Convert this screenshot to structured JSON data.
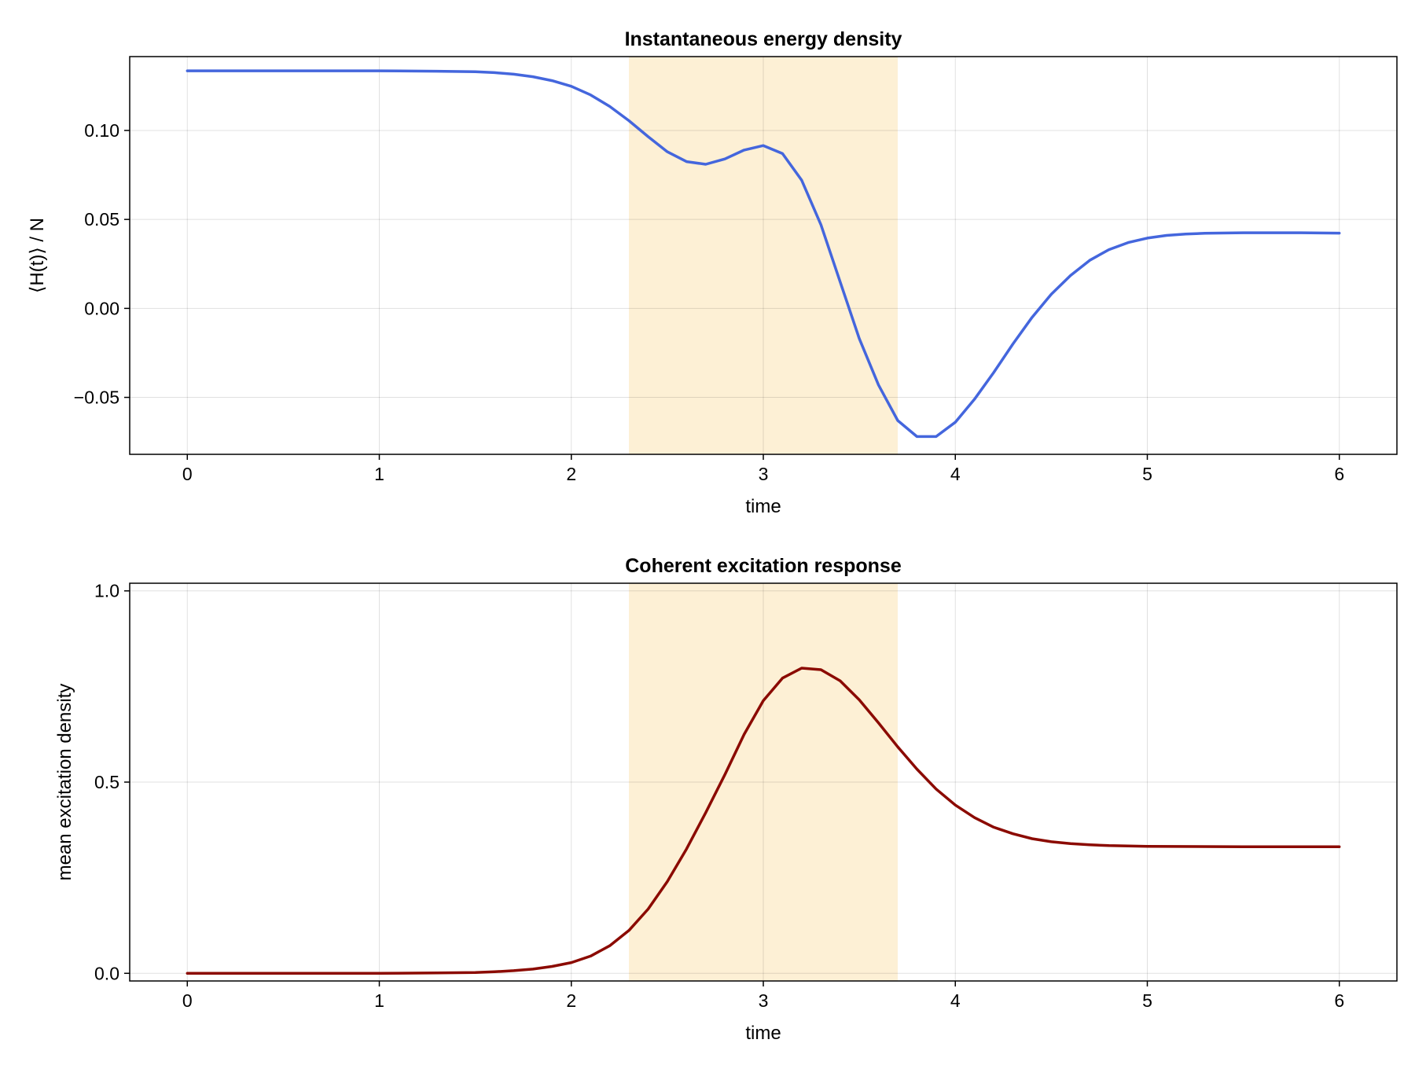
{
  "chart_data": [
    {
      "type": "line",
      "title": "Instantaneous energy density",
      "xlabel": "time",
      "ylabel": "⟨H(t)⟩ / N",
      "xlim": [
        -0.3,
        6.3
      ],
      "ylim": [
        -0.082,
        0.1415
      ],
      "xticks": [
        0,
        1,
        2,
        3,
        4,
        5,
        6
      ],
      "xtick_labels": [
        "0",
        "1",
        "2",
        "3",
        "4",
        "5",
        "6"
      ],
      "yticks": [
        -0.05,
        0.0,
        0.05,
        0.1
      ],
      "ytick_labels": [
        "−0.05",
        "0.00",
        "0.05",
        "0.10"
      ],
      "grid": true,
      "shaded_region": {
        "x": [
          2.3,
          3.7
        ],
        "color": "#fdf0d5"
      },
      "series": [
        {
          "color": "#4466dd",
          "x": [
            0,
            0.5,
            1.0,
            1.3,
            1.5,
            1.6,
            1.7,
            1.8,
            1.9,
            2.0,
            2.1,
            2.2,
            2.3,
            2.4,
            2.5,
            2.6,
            2.7,
            2.8,
            2.9,
            3.0,
            3.1,
            3.2,
            3.3,
            3.4,
            3.5,
            3.6,
            3.7,
            3.8,
            3.9,
            4.0,
            4.1,
            4.2,
            4.3,
            4.4,
            4.5,
            4.6,
            4.7,
            4.8,
            4.9,
            5.0,
            5.1,
            5.2,
            5.3,
            5.5,
            5.8,
            6.0
          ],
          "y": [
            0.1335,
            0.1335,
            0.1335,
            0.1333,
            0.133,
            0.1325,
            0.1316,
            0.1302,
            0.128,
            0.1248,
            0.12,
            0.1135,
            0.1055,
            0.0965,
            0.088,
            0.0825,
            0.081,
            0.084,
            0.089,
            0.0915,
            0.087,
            0.072,
            0.047,
            0.015,
            -0.017,
            -0.043,
            -0.063,
            -0.072,
            -0.072,
            -0.064,
            -0.051,
            -0.036,
            -0.02,
            -0.005,
            0.008,
            0.0185,
            0.027,
            0.033,
            0.037,
            0.0395,
            0.041,
            0.0418,
            0.0422,
            0.0425,
            0.0425,
            0.0423
          ]
        }
      ]
    },
    {
      "type": "line",
      "title": "Coherent excitation response",
      "xlabel": "time",
      "ylabel": "mean excitation density",
      "xlim": [
        -0.3,
        6.3
      ],
      "ylim": [
        -0.02,
        1.02
      ],
      "xticks": [
        0,
        1,
        2,
        3,
        4,
        5,
        6
      ],
      "xtick_labels": [
        "0",
        "1",
        "2",
        "3",
        "4",
        "5",
        "6"
      ],
      "yticks": [
        0.0,
        0.5,
        1.0
      ],
      "ytick_labels": [
        "0.0",
        "0.5",
        "1.0"
      ],
      "grid": true,
      "shaded_region": {
        "x": [
          2.3,
          3.7
        ],
        "color": "#fdf0d5"
      },
      "series": [
        {
          "color": "#8b0a00",
          "x": [
            0,
            0.5,
            1.0,
            1.3,
            1.5,
            1.6,
            1.7,
            1.8,
            1.9,
            2.0,
            2.1,
            2.2,
            2.3,
            2.4,
            2.5,
            2.6,
            2.7,
            2.8,
            2.9,
            3.0,
            3.1,
            3.2,
            3.3,
            3.4,
            3.5,
            3.6,
            3.7,
            3.8,
            3.9,
            4.0,
            4.1,
            4.2,
            4.3,
            4.4,
            4.5,
            4.6,
            4.7,
            4.8,
            5.0,
            5.5,
            6.0
          ],
          "y": [
            0.0,
            0.0,
            0.0,
            0.001,
            0.002,
            0.004,
            0.007,
            0.011,
            0.018,
            0.028,
            0.045,
            0.072,
            0.112,
            0.168,
            0.24,
            0.325,
            0.42,
            0.52,
            0.625,
            0.713,
            0.772,
            0.798,
            0.794,
            0.765,
            0.715,
            0.655,
            0.592,
            0.534,
            0.482,
            0.44,
            0.407,
            0.382,
            0.365,
            0.352,
            0.344,
            0.339,
            0.336,
            0.334,
            0.332,
            0.331,
            0.331
          ]
        }
      ]
    }
  ]
}
